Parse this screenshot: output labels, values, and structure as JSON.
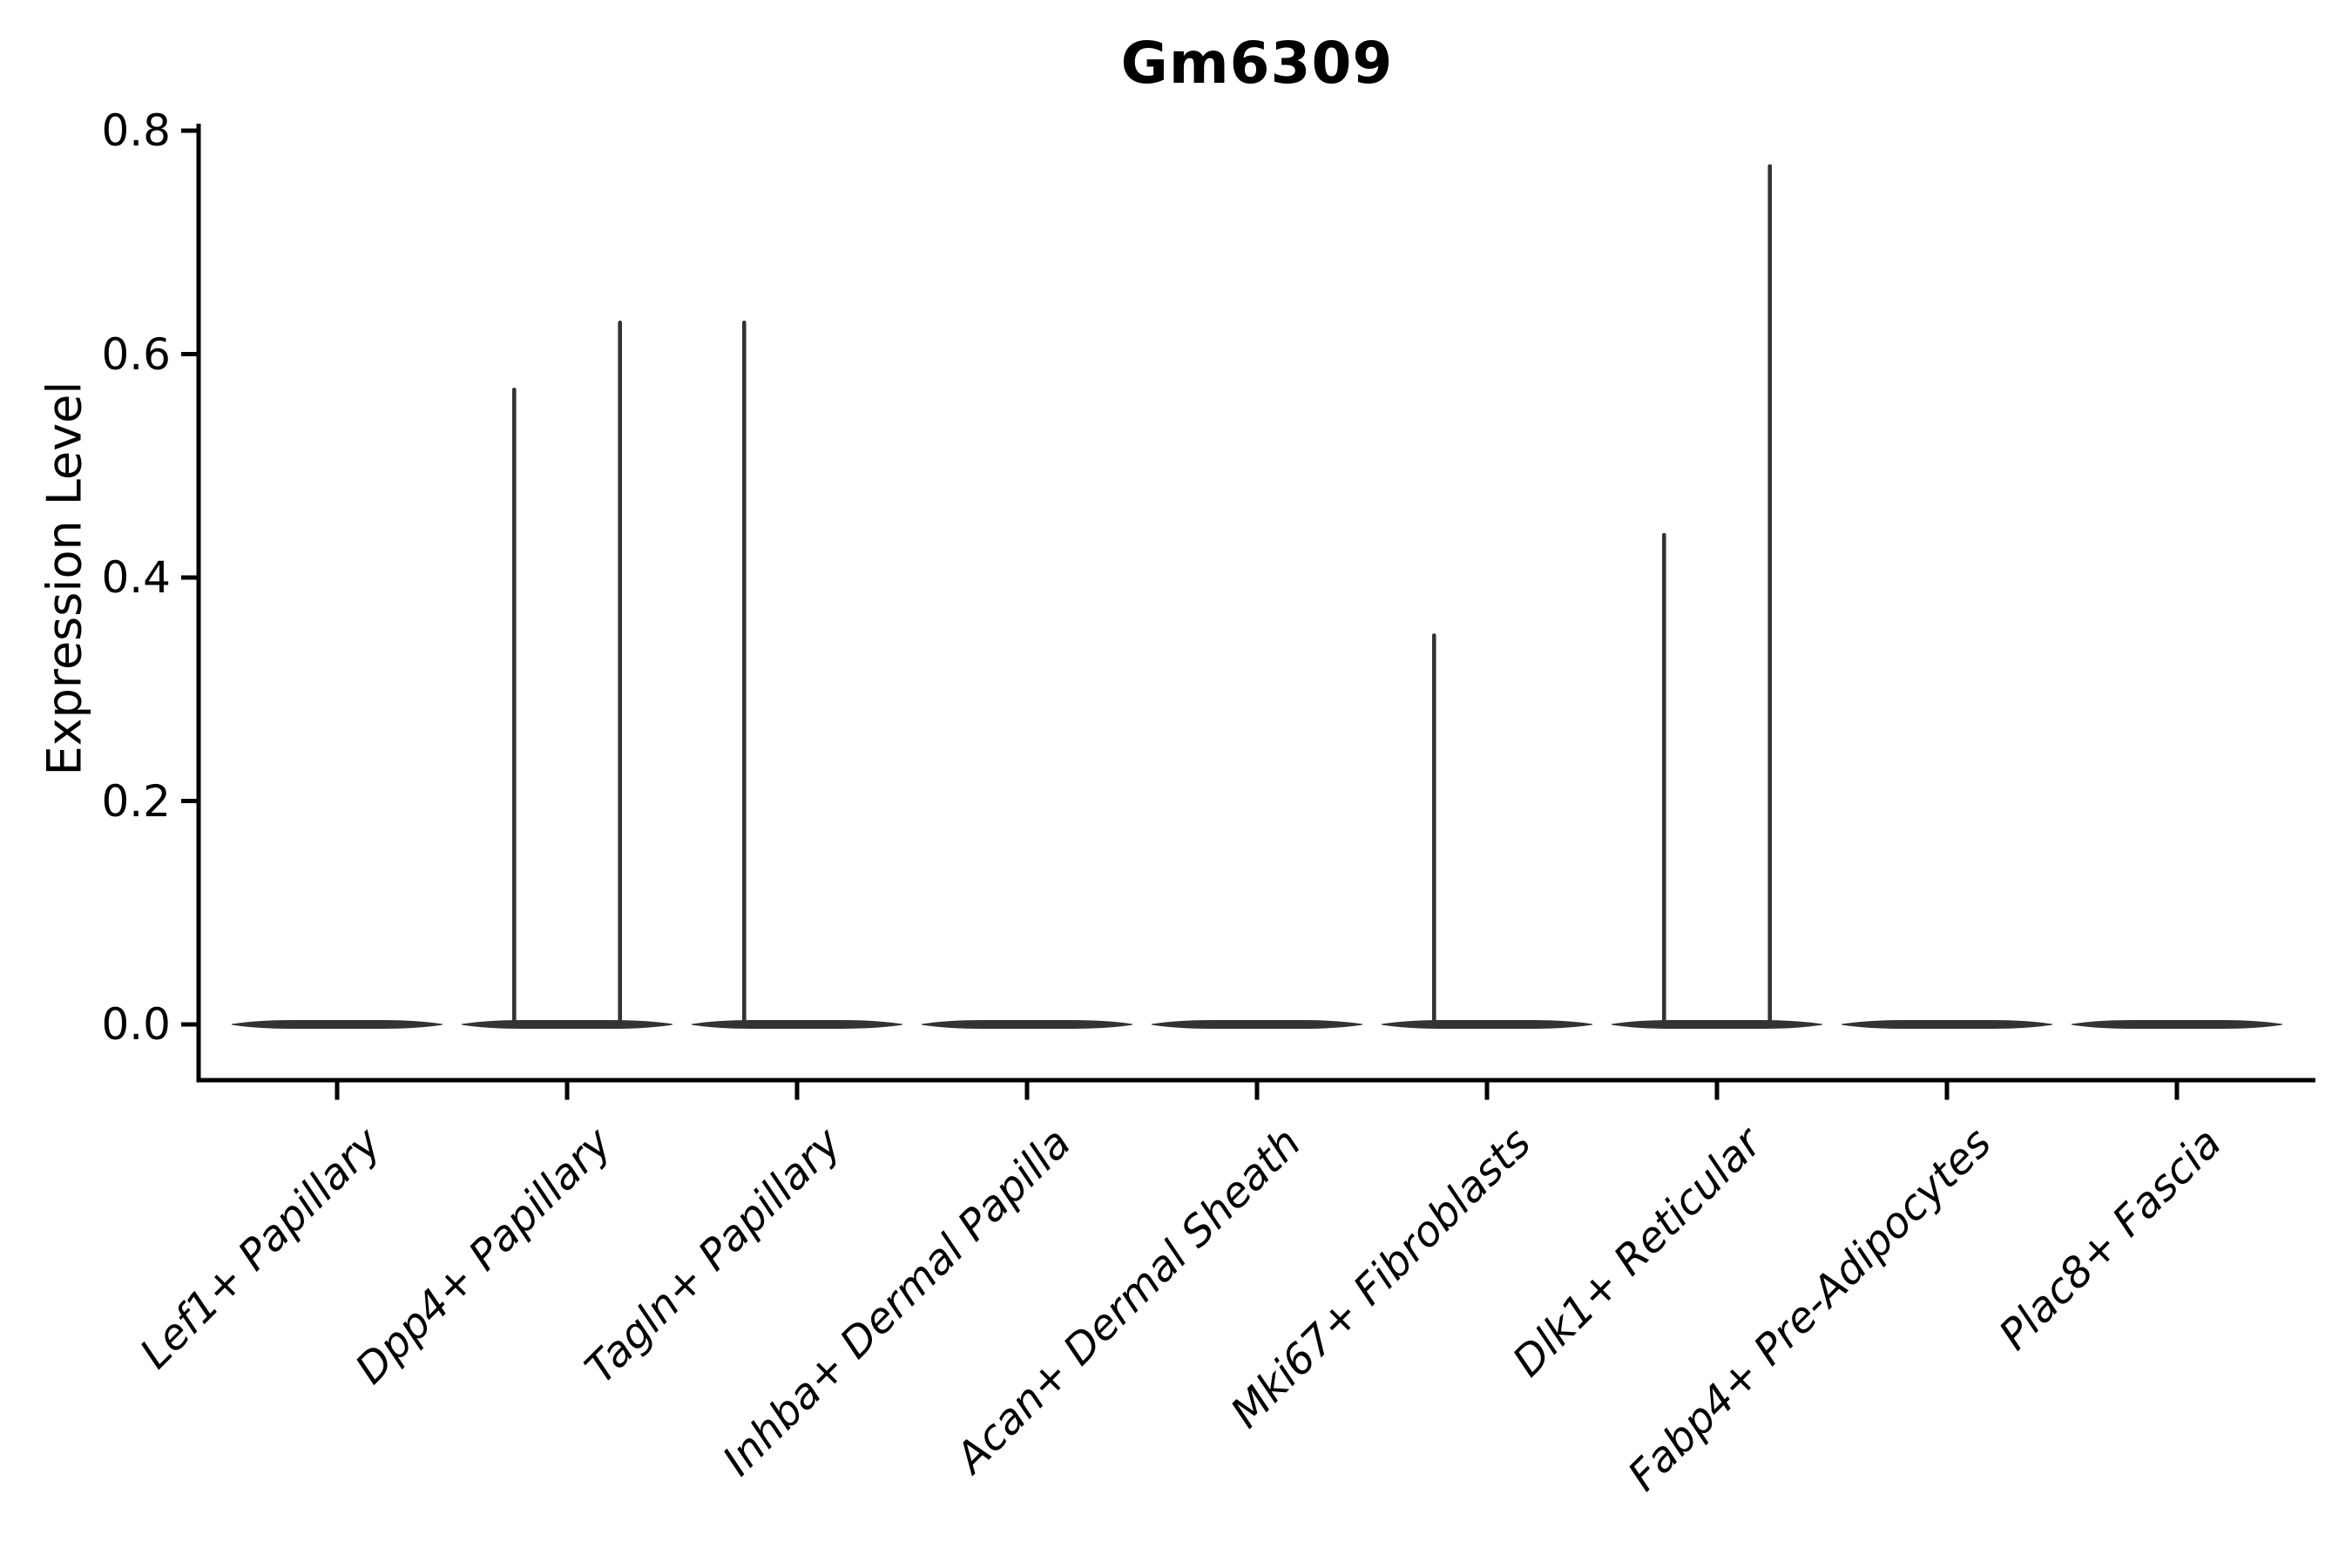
{
  "figure": {
    "title": "Gm6309",
    "y_axis": {
      "label": "Expression Level",
      "tick_labels": [
        "0.0",
        "0.2",
        "0.4",
        "0.6",
        "0.8"
      ]
    }
  },
  "chart_data": {
    "type": "violin",
    "title": "Gm6309",
    "xlabel": "",
    "ylabel": "Expression Level",
    "ylim": [
      -0.05,
      0.81
    ],
    "yticks": [
      0.0,
      0.2,
      0.4,
      0.6,
      0.8
    ],
    "grid": false,
    "legend": "none",
    "categories": [
      "Lef1+ Papillary",
      "Dpp4+ Papillary",
      "Tagln+ Papillary",
      "Inhba+ Dermal Papilla",
      "Acan+ Dermal Sheath",
      "Mki67+ Fibroblasts",
      "Dlk1+ Reticular",
      "Fabp4+ Pre-Adipocytes",
      "Plac8+ Fascia"
    ],
    "description": "Violin plot of Gm6309 expression; every population is concentrated at 0 (flat collapsed violins) with thin spikes up to the maximum expressing cells in some populations. Spikes sit at left/right sub-violin positions within each category.",
    "violins": [
      {
        "category": "Lef1+ Papillary",
        "baseline_value": 0.0,
        "spikes": []
      },
      {
        "category": "Dpp4+ Papillary",
        "baseline_value": 0.0,
        "spikes": [
          {
            "offset": -0.23,
            "max_value": 0.57
          },
          {
            "offset": 0.23,
            "max_value": 0.63
          }
        ]
      },
      {
        "category": "Tagln+ Papillary",
        "baseline_value": 0.0,
        "spikes": [
          {
            "offset": -0.23,
            "max_value": 0.63
          }
        ]
      },
      {
        "category": "Inhba+ Dermal Papilla",
        "baseline_value": 0.0,
        "spikes": []
      },
      {
        "category": "Acan+ Dermal Sheath",
        "baseline_value": 0.0,
        "spikes": []
      },
      {
        "category": "Mki67+ Fibroblasts",
        "baseline_value": 0.0,
        "spikes": [
          {
            "offset": -0.23,
            "max_value": 0.35
          }
        ]
      },
      {
        "category": "Dlk1+ Reticular",
        "baseline_value": 0.0,
        "spikes": [
          {
            "offset": -0.23,
            "max_value": 0.44
          },
          {
            "offset": 0.23,
            "max_value": 0.77
          }
        ]
      },
      {
        "category": "Fabp4+ Pre-Adipocytes",
        "baseline_value": 0.0,
        "spikes": []
      },
      {
        "category": "Plac8+ Fascia",
        "baseline_value": 0.0,
        "spikes": []
      }
    ],
    "colors": {
      "violin_stroke": "#333333",
      "axis": "#000000",
      "text": "#000000",
      "background": "#ffffff"
    }
  }
}
